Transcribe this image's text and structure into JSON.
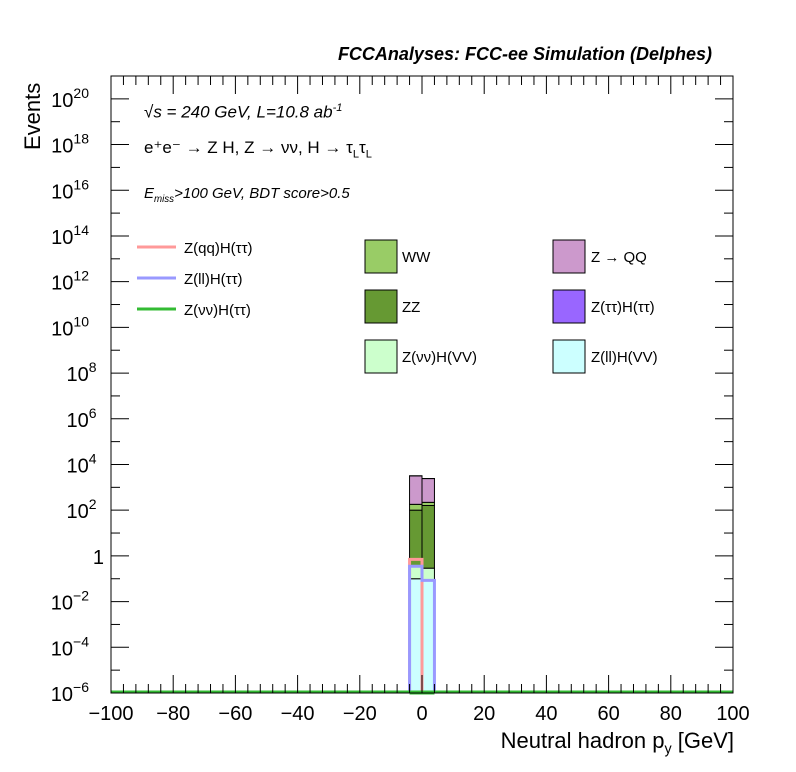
{
  "title": "FCCAnalyses: FCC-ee Simulation (Delphes)",
  "annotations": {
    "line1": "√s = 240 GeV, L=10.8 ab",
    "line1_sup": "-1",
    "line2": "e⁺e⁻ → Z H, Z → νν, H → τ",
    "line2_sub": "L",
    "line2_tail": "τ",
    "line3_pre": "E",
    "line3_sub": "miss",
    "line3_post": ">100 GeV, BDT score>0.5"
  },
  "chart_data": {
    "type": "bar",
    "title": "FCCAnalyses: FCC-ee Simulation (Delphes)",
    "xlabel": "Neutral hadron p",
    "xlabel_sub": "y",
    "xlabel_unit": " [GeV]",
    "ylabel": "Events",
    "xlim": [
      -100,
      100
    ],
    "ylim": [
      1e-06,
      1e+21
    ],
    "yscale": "log",
    "grid": false,
    "x_ticks": [
      "−100",
      "−80",
      "−60",
      "−40",
      "−20",
      "0",
      "20",
      "40",
      "60",
      "80",
      "100"
    ],
    "x_tick_values": [
      -100,
      -80,
      -60,
      -40,
      -20,
      0,
      20,
      40,
      60,
      80,
      100
    ],
    "y_ticks": [
      {
        "value": 1e-06,
        "base": "10",
        "exp": "−6"
      },
      {
        "value": 0.0001,
        "base": "10",
        "exp": "−4"
      },
      {
        "value": 0.01,
        "base": "10",
        "exp": "−2"
      },
      {
        "value": 1,
        "base": "1",
        "exp": ""
      },
      {
        "value": 100.0,
        "base": "10",
        "exp": "2"
      },
      {
        "value": 10000.0,
        "base": "10",
        "exp": "4"
      },
      {
        "value": 1000000.0,
        "base": "10",
        "exp": "6"
      },
      {
        "value": 100000000.0,
        "base": "10",
        "exp": "8"
      },
      {
        "value": 10000000000.0,
        "base": "10",
        "exp": "10"
      },
      {
        "value": 1000000000000.0,
        "base": "10",
        "exp": "12"
      },
      {
        "value": 100000000000000.0,
        "base": "10",
        "exp": "14"
      },
      {
        "value": 1e+16,
        "base": "10",
        "exp": "16"
      },
      {
        "value": 1e+18,
        "base": "10",
        "exp": "18"
      },
      {
        "value": 1e+20,
        "base": "10",
        "exp": "20"
      }
    ],
    "bin_edges": [
      -4,
      0,
      4
    ],
    "stacked_backgrounds": [
      {
        "name": "Z(ll)H(VV)",
        "color": "#ccffff",
        "values": [
          0.1,
          0.09
        ]
      },
      {
        "name": "Z(νν)H(VV)",
        "color": "#ccffcc",
        "values": [
          0.25,
          0.2
        ]
      },
      {
        "name": "ZZ",
        "color": "#669933",
        "values": [
          100,
          160
        ]
      },
      {
        "name": "WW",
        "color": "#99cc66",
        "values": [
          80,
          60
        ]
      },
      {
        "name": "Z → QQ",
        "color": "#cc99cc",
        "values": [
          3000,
          2200
        ]
      },
      {
        "name": "Z(ττ)H(ττ)",
        "color": "#9966ff",
        "values": [
          0.01,
          0.02
        ]
      }
    ],
    "signal_lines": [
      {
        "name": "Z(qq)H(ττ)",
        "color": "#ff9999",
        "values": [
          0.7,
          1e-07
        ]
      },
      {
        "name": "Z(ll)H(ττ)",
        "color": "#9999ff",
        "values": [
          0.35,
          0.085
        ]
      },
      {
        "name": "Z(νν)H(ττ)",
        "color": "#33bb33",
        "values": [
          1e-07,
          1e-07
        ]
      }
    ],
    "legend": {
      "lines": [
        {
          "label": "Z(qq)H(ττ)",
          "color": "#ff9999"
        },
        {
          "label": "Z(ll)H(ττ)",
          "color": "#9999ff"
        },
        {
          "label": "Z(νν)H(ττ)",
          "color": "#33bb33"
        }
      ],
      "boxes_col1": [
        {
          "label": "WW",
          "color": "#99cc66"
        },
        {
          "label": "ZZ",
          "color": "#669933"
        },
        {
          "label": "Z(νν)H(VV)",
          "color": "#ccffcc"
        }
      ],
      "boxes_col2": [
        {
          "label": "Z → QQ",
          "color": "#cc99cc"
        },
        {
          "label": "Z(ττ)H(ττ)",
          "color": "#9966ff"
        },
        {
          "label": "Z(ll)H(VV)",
          "color": "#ccffff"
        }
      ]
    }
  }
}
